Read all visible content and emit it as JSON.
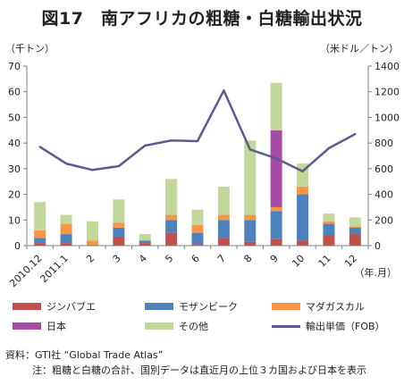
{
  "title": "図17　南アフリカの粗糖・白糖輸出状況",
  "units": {
    "left": "（千トン）",
    "right": "（米ドル／トン）",
    "period": "（年.月）"
  },
  "source": "資料：GTI社 “Global Trade Atlas”",
  "note": "注：粗糖と白糖の合計、国別データは直近月の上位３カ国および日本を表示",
  "colors": {
    "zimbabwe": "#c0504d",
    "mozambique": "#4f81bd",
    "madagascar": "#f79646",
    "japan": "#a64ca6",
    "other": "#c3d69b",
    "price": "#5b5b8f",
    "axis": "#808080"
  },
  "chart_data": {
    "type": "bar",
    "categories": [
      "2010.12",
      "2011.1",
      "2",
      "3",
      "4",
      "5",
      "6",
      "7",
      "8",
      "9",
      "10",
      "11",
      "12"
    ],
    "series": [
      {
        "name": "ジンバブエ",
        "key": "zimbabwe",
        "values": [
          1,
          1,
          0,
          3.5,
          1,
          5,
          0.5,
          3,
          1.5,
          2.5,
          2,
          4,
          4.5
        ]
      },
      {
        "name": "モザンビーク",
        "key": "mozambique",
        "values": [
          2,
          3.5,
          0,
          3.5,
          1,
          5,
          4.5,
          7,
          8.5,
          11,
          18,
          4.5,
          2.5
        ]
      },
      {
        "name": "マダガスカル",
        "key": "madagascar",
        "values": [
          3,
          4,
          2,
          2,
          0,
          2,
          3,
          2,
          2,
          1.5,
          3,
          1,
          0.5
        ]
      },
      {
        "name": "日本",
        "key": "japan",
        "values": [
          0,
          0,
          0,
          0,
          0,
          0,
          0,
          0,
          0,
          30,
          0,
          0,
          0
        ]
      },
      {
        "name": "その他",
        "key": "other",
        "values": [
          11,
          3.5,
          7.5,
          9,
          2.5,
          14,
          6,
          11,
          29,
          18.5,
          9,
          3,
          3.5
        ]
      }
    ],
    "line": {
      "name": "輸出単価（FOB）",
      "key": "price",
      "values": [
        770,
        640,
        590,
        620,
        780,
        820,
        815,
        1210,
        750,
        680,
        580,
        760,
        870
      ]
    },
    "yleft": {
      "min": 0,
      "max": 70,
      "ticks": [
        0,
        10,
        20,
        30,
        40,
        50,
        60,
        70
      ]
    },
    "yright": {
      "min": 0,
      "max": 1400,
      "ticks": [
        0,
        200,
        400,
        600,
        800,
        1000,
        1200,
        1400
      ]
    },
    "grid": false,
    "legend": "bottom"
  }
}
